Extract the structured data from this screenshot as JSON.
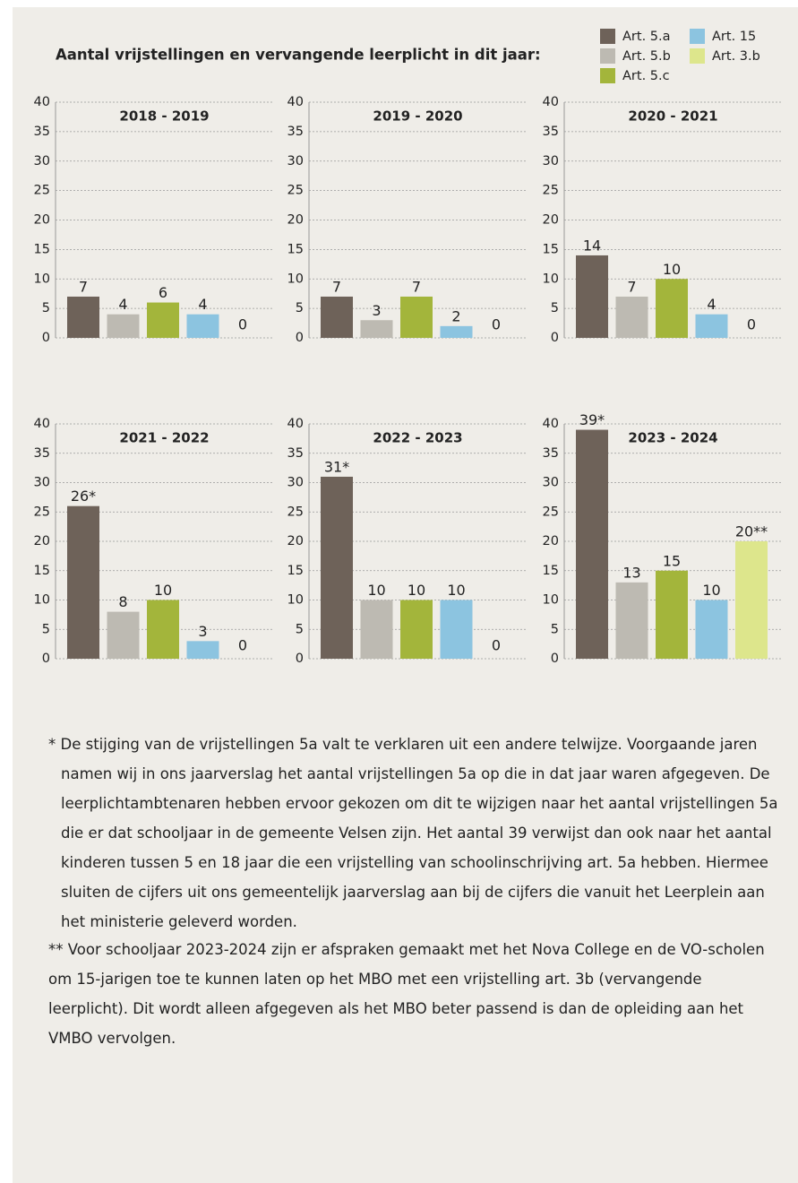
{
  "chart_data": {
    "type": "bar",
    "title": "Aantal vrijstellingen en vervangende leerplicht in dit jaar:",
    "categories": [
      "2018 - 2019",
      "2019 - 2020",
      "2020 - 2021",
      "2021 - 2022",
      "2022 - 2023",
      "2023 - 2024"
    ],
    "series": [
      {
        "name": "Art. 5.a",
        "color": "#6e6259",
        "values": [
          7,
          7,
          14,
          26,
          31,
          39
        ],
        "value_labels": [
          "7",
          "7",
          "14",
          "26*",
          "31*",
          "39*"
        ]
      },
      {
        "name": "Art. 5.b",
        "color": "#bdbab2",
        "values": [
          4,
          3,
          7,
          8,
          10,
          13
        ]
      },
      {
        "name": "Art. 5.c",
        "color": "#a3b53b",
        "values": [
          6,
          7,
          10,
          10,
          10,
          15
        ]
      },
      {
        "name": "Art. 15",
        "color": "#8cc4e0",
        "values": [
          4,
          2,
          4,
          3,
          10,
          10
        ]
      },
      {
        "name": "Art. 3.b",
        "color": "#dde68c",
        "values": [
          0,
          0,
          0,
          0,
          0,
          20
        ],
        "value_labels": [
          "0",
          "0",
          "0",
          "0",
          "0",
          "20**"
        ]
      }
    ],
    "ylim": [
      0,
      40
    ],
    "yticks": [
      0,
      5,
      10,
      15,
      20,
      25,
      30,
      35,
      40
    ],
    "grid": true
  },
  "notes": [
    "* De stijging van de vrijstellingen 5a valt te verklaren uit een andere telwijze. Voorgaande jaren namen wij in ons jaarverslag het aantal vrijstellingen 5a op die in dat jaar waren afgegeven. De leerplichtambtenaren hebben ervoor gekozen om dit te wijzigen naar het aantal vrijstellingen 5a die er dat schooljaar in de gemeente Velsen zijn. Het aantal 39 verwijst dan ook naar het aantal kinderen tussen 5 en 18 jaar die een vrijstelling van schoolinschrijving art. 5a hebben. Hiermee sluiten de cijfers uit ons gemeentelijk jaarverslag aan bij de cijfers die vanuit het Leerplein aan het ministerie geleverd worden.",
    "** Voor schooljaar 2023-2024 zijn er afspraken gemaakt met het Nova College en de VO-scholen om 15-jarigen toe te kunnen laten op het MBO met een vrijstelling art. 3b (vervangende leerplicht). Dit wordt alleen afgegeven als het MBO beter passend is dan de opleiding aan het VMBO vervolgen."
  ]
}
